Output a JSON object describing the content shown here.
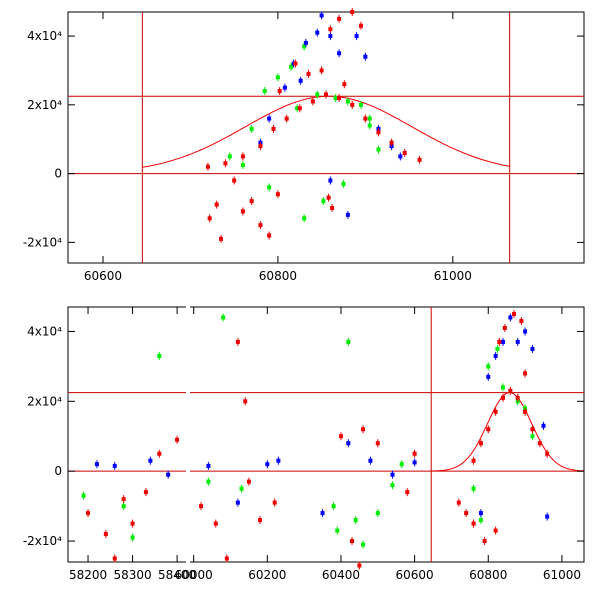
{
  "chart_data": [
    {
      "type": "scatter",
      "title": "",
      "xlabel": "",
      "ylabel": "",
      "xlim": [
        60560,
        61150
      ],
      "ylim": [
        -26000,
        47000
      ],
      "x_ticks": [
        {
          "value": 60600,
          "label": "60600"
        },
        {
          "value": 60800,
          "label": "60800"
        },
        {
          "value": 61000,
          "label": "61000"
        }
      ],
      "y_ticks": [
        {
          "value": -20000,
          "label": "-2x10⁴"
        },
        {
          "value": 0,
          "label": "0"
        },
        {
          "value": 20000,
          "label": "2x10⁴"
        },
        {
          "value": 40000,
          "label": "4x10⁴"
        }
      ],
      "reference_lines": {
        "vertical": [
          60645,
          61065
        ],
        "horizontal": [
          0,
          22500
        ]
      },
      "model_curve": {
        "center": 60858,
        "peak": 22500,
        "width": 95,
        "x_range": [
          60645,
          61065
        ]
      },
      "series": [
        {
          "name": "green",
          "color": "#00ee00",
          "points": [
            [
              60770,
              13000
            ],
            [
              60785,
              24000
            ],
            [
              60800,
              28000
            ],
            [
              60815,
              31000
            ],
            [
              60830,
              37000
            ],
            [
              60845,
              23000
            ],
            [
              60880,
              21000
            ],
            [
              60895,
              20000
            ],
            [
              60905,
              14000
            ],
            [
              60915,
              7000
            ],
            [
              60760,
              2500
            ],
            [
              60745,
              5000
            ],
            [
              60790,
              -4000
            ],
            [
              60830,
              -13000
            ],
            [
              60852,
              -8000
            ],
            [
              60875,
              -3000
            ],
            [
              60905,
              16000
            ],
            [
              60822,
              19000
            ],
            [
              60866,
              22000
            ]
          ]
        },
        {
          "name": "blue",
          "color": "#0000ff",
          "points": [
            [
              60790,
              16000
            ],
            [
              60808,
              25000
            ],
            [
              60818,
              32000
            ],
            [
              60832,
              38000
            ],
            [
              60845,
              41000
            ],
            [
              60850,
              46000
            ],
            [
              60860,
              40000
            ],
            [
              60870,
              35000
            ],
            [
              60890,
              40000
            ],
            [
              60900,
              34000
            ],
            [
              60915,
              13000
            ],
            [
              60930,
              8000
            ],
            [
              60860,
              -2000
            ],
            [
              60880,
              -12000
            ],
            [
              60780,
              9000
            ],
            [
              60826,
              27000
            ],
            [
              60940,
              5000
            ]
          ]
        },
        {
          "name": "red",
          "color": "#ee0000",
          "points": [
            [
              60720,
              2000
            ],
            [
              60740,
              3000
            ],
            [
              60760,
              5000
            ],
            [
              60780,
              8000
            ],
            [
              60795,
              13000
            ],
            [
              60810,
              16000
            ],
            [
              60825,
              19000
            ],
            [
              60840,
              21000
            ],
            [
              60855,
              23000
            ],
            [
              60870,
              22000
            ],
            [
              60885,
              20000
            ],
            [
              60900,
              16000
            ],
            [
              60915,
              12000
            ],
            [
              60930,
              9000
            ],
            [
              60945,
              6000
            ],
            [
              60962,
              4000
            ],
            [
              60802,
              24000
            ],
            [
              60820,
              32000
            ],
            [
              60835,
              29000
            ],
            [
              60860,
              42000
            ],
            [
              60870,
              45000
            ],
            [
              60885,
              47000
            ],
            [
              60895,
              43000
            ],
            [
              60850,
              30000
            ],
            [
              60876,
              26000
            ],
            [
              60750,
              -2000
            ],
            [
              60730,
              -9000
            ],
            [
              60760,
              -11000
            ],
            [
              60780,
              -15000
            ],
            [
              60790,
              -18000
            ],
            [
              60735,
              -19000
            ],
            [
              60722,
              -13000
            ],
            [
              60770,
              -8000
            ],
            [
              60858,
              -7000
            ],
            [
              60862,
              -10000
            ],
            [
              60800,
              -6000
            ]
          ]
        }
      ]
    },
    {
      "type": "scatter",
      "title": "",
      "xlabel": "",
      "ylabel": "",
      "x_segments": [
        {
          "xlim": [
            58155,
            58420
          ],
          "x_ticks": [
            {
              "value": 58200,
              "label": "58200"
            },
            {
              "value": 58300,
              "label": "58300"
            },
            {
              "value": 58400,
              "label": "58400"
            }
          ]
        },
        {
          "xlim": [
            59990,
            61060
          ],
          "x_ticks": [
            {
              "value": 60000,
              "label": "60000"
            },
            {
              "value": 60200,
              "label": "60200"
            },
            {
              "value": 60400,
              "label": "60400"
            },
            {
              "value": 60600,
              "label": "60600"
            },
            {
              "value": 60800,
              "label": "60800"
            },
            {
              "value": 61000,
              "label": "61000"
            }
          ]
        }
      ],
      "ylim": [
        -26000,
        47000
      ],
      "y_ticks": [
        {
          "value": -20000,
          "label": "-2x10⁴"
        },
        {
          "value": 0,
          "label": "0"
        },
        {
          "value": 20000,
          "label": "2x10⁴"
        },
        {
          "value": 40000,
          "label": "4x10⁴"
        }
      ],
      "reference_lines": {
        "vertical": [
          60645
        ],
        "horizontal": [
          0,
          22500
        ]
      },
      "model_curve": {
        "center": 60858,
        "peak": 22500,
        "width": 60,
        "x_range": [
          60645,
          61060
        ]
      },
      "series": [
        {
          "name": "green",
          "color": "#00ee00",
          "points": [
            [
              58190,
              -7000
            ],
            [
              58280,
              -10000
            ],
            [
              58300,
              -19000
            ],
            [
              58360,
              33000
            ],
            [
              60080,
              44000
            ],
            [
              60130,
              -5000
            ],
            [
              60040,
              -3000
            ],
            [
              60380,
              -10000
            ],
            [
              60390,
              -17000
            ],
            [
              60420,
              37000
            ],
            [
              60440,
              -14000
            ],
            [
              60460,
              -21000
            ],
            [
              60500,
              -12000
            ],
            [
              60540,
              -4000
            ],
            [
              60760,
              -5000
            ],
            [
              60780,
              -14000
            ],
            [
              60800,
              30000
            ],
            [
              60825,
              35000
            ],
            [
              60840,
              24000
            ],
            [
              60880,
              20000
            ],
            [
              60900,
              18000
            ],
            [
              60920,
              10000
            ],
            [
              60565,
              2000
            ]
          ]
        },
        {
          "name": "blue",
          "color": "#0000ff",
          "points": [
            [
              58220,
              2000
            ],
            [
              58260,
              1500
            ],
            [
              58340,
              3000
            ],
            [
              58380,
              -1000
            ],
            [
              60040,
              1500
            ],
            [
              60120,
              -9000
            ],
            [
              60200,
              2000
            ],
            [
              60230,
              3000
            ],
            [
              60350,
              -12000
            ],
            [
              60420,
              8000
            ],
            [
              60480,
              3000
            ],
            [
              60540,
              -1000
            ],
            [
              60600,
              2500
            ],
            [
              60800,
              27000
            ],
            [
              60820,
              33000
            ],
            [
              60840,
              37000
            ],
            [
              60860,
              44000
            ],
            [
              60880,
              37000
            ],
            [
              60900,
              40000
            ],
            [
              60920,
              35000
            ],
            [
              60950,
              13000
            ],
            [
              60960,
              -13000
            ],
            [
              60780,
              -12000
            ]
          ]
        },
        {
          "name": "red",
          "color": "#ee0000",
          "points": [
            [
              58200,
              -12000
            ],
            [
              58240,
              -18000
            ],
            [
              58260,
              -25000
            ],
            [
              58280,
              -8000
            ],
            [
              58300,
              -15000
            ],
            [
              58330,
              -6000
            ],
            [
              58400,
              9000
            ],
            [
              58360,
              5000
            ],
            [
              60020,
              -10000
            ],
            [
              60060,
              -15000
            ],
            [
              60090,
              -25000
            ],
            [
              60120,
              37000
            ],
            [
              60140,
              20000
            ],
            [
              60150,
              -3000
            ],
            [
              60180,
              -14000
            ],
            [
              60220,
              -9000
            ],
            [
              60400,
              10000
            ],
            [
              60430,
              -20000
            ],
            [
              60450,
              -27000
            ],
            [
              60460,
              12000
            ],
            [
              60500,
              8000
            ],
            [
              60580,
              -6000
            ],
            [
              60600,
              5000
            ],
            [
              60720,
              -9000
            ],
            [
              60740,
              -12000
            ],
            [
              60760,
              -15000
            ],
            [
              60790,
              -20000
            ],
            [
              60820,
              -17000
            ],
            [
              60760,
              3000
            ],
            [
              60780,
              8000
            ],
            [
              60800,
              12000
            ],
            [
              60820,
              17000
            ],
            [
              60840,
              21000
            ],
            [
              60860,
              23000
            ],
            [
              60880,
              21000
            ],
            [
              60900,
              17000
            ],
            [
              60920,
              12000
            ],
            [
              60940,
              8000
            ],
            [
              60960,
              5000
            ],
            [
              60830,
              37000
            ],
            [
              60845,
              41000
            ],
            [
              60870,
              45000
            ],
            [
              60890,
              43000
            ],
            [
              60900,
              28000
            ]
          ]
        }
      ]
    }
  ]
}
